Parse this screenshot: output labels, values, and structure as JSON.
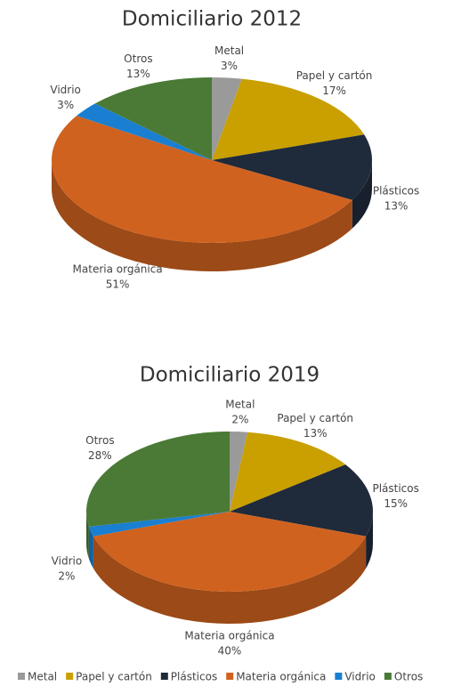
{
  "chart_data": [
    {
      "type": "pie",
      "title": "Domiciliario 2012",
      "categories": [
        "Metal",
        "Papel y cartón",
        "Plásticos",
        "Materia orgánica",
        "Vidrio",
        "Otros"
      ],
      "values": [
        3,
        17,
        13,
        51,
        3,
        13
      ],
      "value_labels": [
        "3%",
        "17%",
        "13%",
        "51%",
        "3%",
        "13%"
      ],
      "colors": [
        "#9a9a9a",
        "#c9a000",
        "#1f2a3a",
        "#d0621f",
        "#1a7fd0",
        "#4a7a35"
      ]
    },
    {
      "type": "pie",
      "title": "Domiciliario 2019",
      "categories": [
        "Metal",
        "Papel y cartón",
        "Plásticos",
        "Materia orgánica",
        "Vidrio",
        "Otros"
      ],
      "values": [
        2,
        13,
        15,
        40,
        2,
        28
      ],
      "value_labels": [
        "2%",
        "13%",
        "15%",
        "40%",
        "2%",
        "28%"
      ],
      "colors": [
        "#9a9a9a",
        "#c9a000",
        "#1f2a3a",
        "#d0621f",
        "#1a7fd0",
        "#4a7a35"
      ]
    }
  ]
}
